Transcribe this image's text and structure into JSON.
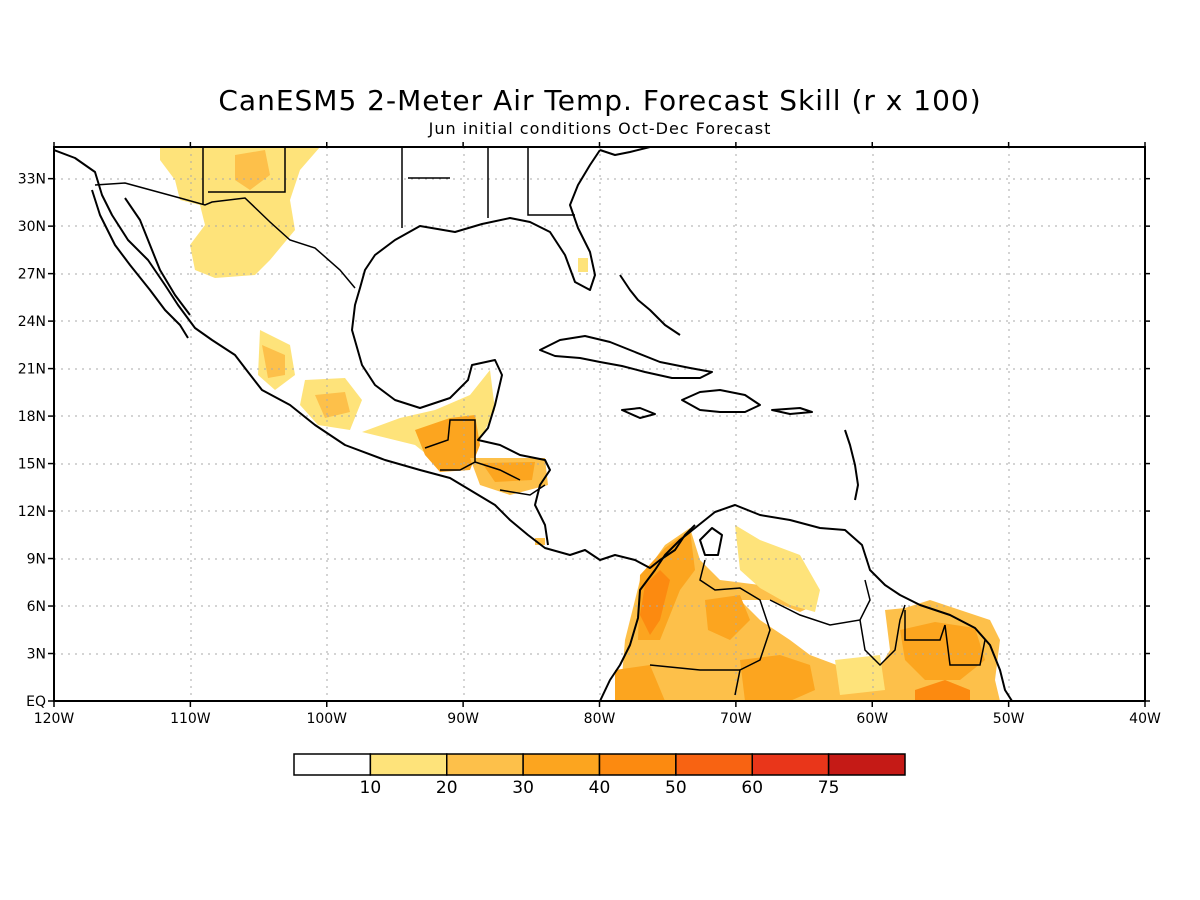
{
  "title": "CanESM5 2-Meter Air Temp. Forecast Skill (r x 100)",
  "subtitle": "Jun initial conditions  Oct-Dec Forecast",
  "map": {
    "lon_range": [
      -120,
      -40
    ],
    "lat_range": [
      0,
      35
    ],
    "x_ticks": [
      "120W",
      "110W",
      "100W",
      "90W",
      "80W",
      "70W",
      "60W",
      "50W",
      "40W"
    ],
    "y_ticks": [
      "EQ",
      "3N",
      "6N",
      "9N",
      "12N",
      "15N",
      "18N",
      "21N",
      "24N",
      "27N",
      "30N",
      "33N"
    ],
    "grid": "dotted"
  },
  "colorbar": {
    "colors": [
      "#ffffff",
      "#fee37a",
      "#fdc04a",
      "#fca51f",
      "#fc8a10",
      "#f86312",
      "#e9361a",
      "#c51a16",
      "#9a0a0a"
    ],
    "labels": [
      "10",
      "20",
      "30",
      "40",
      "50",
      "60",
      "75"
    ]
  }
}
